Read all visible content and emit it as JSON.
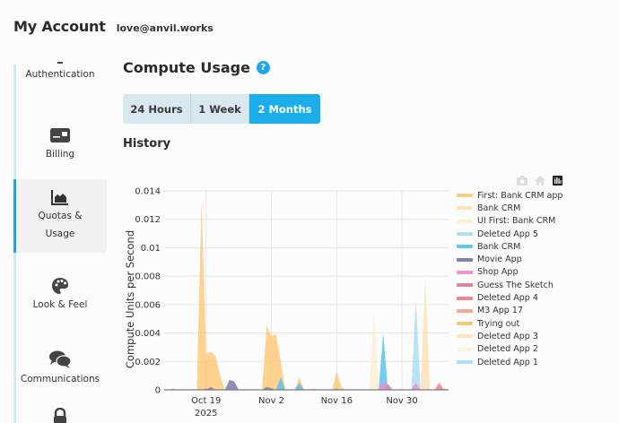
{
  "header": {
    "title": "My Account",
    "email": "love@anvil.works"
  },
  "sidebar": {
    "items": [
      {
        "label": "Authentication",
        "icon": "key-icon"
      },
      {
        "label": "Billing",
        "icon": "credit-card-icon"
      },
      {
        "label": "Quotas &",
        "label2": "Usage",
        "icon": "area-chart-icon",
        "active": true
      },
      {
        "label": "Look & Feel",
        "icon": "palette-icon"
      },
      {
        "label": "Communications",
        "icon": "chat-bubbles-icon"
      },
      {
        "label": "",
        "icon": "lock-icon"
      }
    ]
  },
  "main": {
    "title": "Compute Usage",
    "help_label": "?",
    "range_buttons": [
      {
        "label": "24 Hours",
        "active": false
      },
      {
        "label": "1 Week",
        "active": false
      },
      {
        "label": "2 Months",
        "active": true
      }
    ],
    "history_label": "History"
  },
  "colors": {
    "accent": "#1aaeea",
    "segment_bg": "#d7e8ef",
    "active_rail": "#1aa8e8",
    "rail": "#cdeaf8"
  },
  "chart_data": {
    "type": "area",
    "title": "",
    "xlabel": "",
    "ylabel": "Compute Units per Second",
    "ylim": [
      0,
      0.014
    ],
    "yticks": [
      "0",
      "0.002",
      "0.004",
      "0.006",
      "0.008",
      "0.01",
      "0.012",
      "0.014"
    ],
    "xticks": [
      "Oct 19",
      "Nov 2",
      "Nov 16",
      "Nov 30"
    ],
    "xtick_sub": "2025",
    "grid": true,
    "legend_position": "right",
    "x_start": "Oct 10",
    "x_end": "Dec 10",
    "series": [
      {
        "name": "First: Bank CRM app",
        "color": "#fcc46a",
        "opacity": 0.75,
        "points": [
          [
            7,
            0
          ],
          [
            8,
            0.0133
          ],
          [
            9,
            0.0025
          ],
          [
            10,
            0.0027
          ],
          [
            11,
            0.0024
          ],
          [
            12,
            0.001
          ],
          [
            13,
            0
          ],
          [
            21,
            0
          ],
          [
            22,
            0.0045
          ],
          [
            23,
            0.0038
          ],
          [
            24,
            0.0039
          ],
          [
            25,
            0.002
          ],
          [
            26,
            0
          ],
          [
            28,
            0
          ],
          [
            29,
            0.0009
          ],
          [
            30,
            0
          ],
          [
            36,
            0
          ],
          [
            37,
            0.0013
          ],
          [
            38,
            0.0002
          ],
          [
            39,
            0
          ]
        ]
      },
      {
        "name": "Bank CRM",
        "color": "#fcdca8",
        "opacity": 0.7,
        "points": [
          [
            55,
            0
          ],
          [
            56,
            0.0079
          ],
          [
            57,
            0
          ]
        ]
      },
      {
        "name": "UI First: Bank CRM",
        "color": "#fdeccc",
        "opacity": 0.7,
        "points": [
          [
            44,
            0
          ],
          [
            45,
            0.0055
          ],
          [
            46,
            0
          ]
        ]
      },
      {
        "name": "Deleted App 5",
        "color": "#a6dcf2",
        "opacity": 0.8,
        "points": [
          [
            53,
            0
          ],
          [
            54,
            0.0063
          ],
          [
            55,
            0
          ]
        ]
      },
      {
        "name": "Bank CRM",
        "color": "#5bc4ee",
        "opacity": 0.85,
        "points": [
          [
            24,
            0
          ],
          [
            25,
            0.0009
          ],
          [
            26,
            0
          ],
          [
            28,
            0
          ],
          [
            29,
            0.0005
          ],
          [
            30,
            0
          ],
          [
            36,
            0
          ],
          [
            37,
            0.0001
          ],
          [
            38,
            0
          ],
          [
            46,
            0
          ],
          [
            47,
            0.004
          ],
          [
            48,
            0
          ]
        ]
      },
      {
        "name": "Movie App",
        "color": "#7a79a8",
        "opacity": 0.85,
        "points": [
          [
            9,
            0
          ],
          [
            10,
            0.0002
          ],
          [
            11,
            0
          ],
          [
            13,
            0
          ],
          [
            14,
            0.0007
          ],
          [
            15,
            0.0006
          ],
          [
            16,
            0
          ],
          [
            21,
            0
          ],
          [
            22,
            0.0002
          ],
          [
            23,
            0.0001
          ],
          [
            24,
            0
          ],
          [
            47,
            0
          ],
          [
            48,
            0.0004
          ],
          [
            49,
            0
          ]
        ]
      },
      {
        "name": "Shop App",
        "color": "#f08ccd",
        "opacity": 0.85,
        "points": [
          [
            46,
            0
          ],
          [
            47,
            0.0006
          ],
          [
            48,
            0.0003
          ],
          [
            49,
            0
          ],
          [
            53,
            0
          ],
          [
            54,
            0.0005
          ],
          [
            55,
            0
          ]
        ]
      },
      {
        "name": "Guess The Sketch",
        "color": "#d47896",
        "opacity": 0.8,
        "points": [
          [
            1,
            0
          ],
          [
            2,
            8e-05
          ],
          [
            3,
            0
          ],
          [
            8,
            0
          ],
          [
            9,
            0.0001
          ],
          [
            10,
            0
          ],
          [
            31,
            0
          ],
          [
            32,
            6e-05
          ],
          [
            33,
            0
          ]
        ]
      },
      {
        "name": "Deleted App 4",
        "color": "#ef7f8a",
        "opacity": 0.85,
        "points": [
          [
            58,
            0
          ],
          [
            59,
            0.0005
          ],
          [
            60,
            0
          ]
        ]
      },
      {
        "name": "M3 App 17",
        "color": "#f3a184",
        "opacity": 0.8,
        "points": [
          [
            59,
            0
          ],
          [
            60,
            0.0001
          ],
          [
            61,
            0
          ]
        ]
      },
      {
        "name": "Trying out",
        "color": "#f8c26d",
        "opacity": 0.8,
        "points": []
      },
      {
        "name": "Deleted App 3",
        "color": "#fbdcac",
        "opacity": 0.7,
        "points": []
      },
      {
        "name": "Deleted App 2",
        "color": "#fdeedb",
        "opacity": 0.7,
        "points": []
      },
      {
        "name": "Deleted App 1",
        "color": "#a7dbf1",
        "opacity": 0.8,
        "points": []
      }
    ]
  },
  "modebar": {
    "icons": [
      "camera-icon",
      "home-icon",
      "plotly-logo-icon"
    ]
  }
}
